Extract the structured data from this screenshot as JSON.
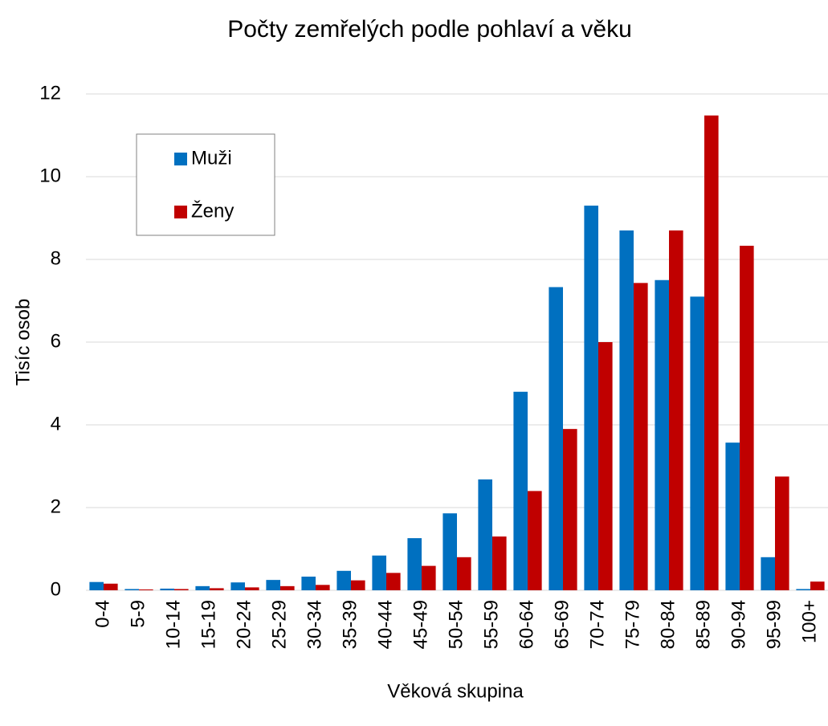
{
  "chart_data": {
    "type": "bar",
    "title": "Počty zemřelých podle pohlaví a věku",
    "x_label": "Věková skupina",
    "y_label": "Tisíc osob",
    "categories": [
      "0-4",
      "5-9",
      "10-14",
      "15-19",
      "20-24",
      "25-29",
      "30-34",
      "35-39",
      "40-44",
      "45-49",
      "50-54",
      "55-59",
      "60-64",
      "65-69",
      "70-74",
      "75-79",
      "80-84",
      "85-89",
      "90-94",
      "95-99",
      "100+"
    ],
    "series": [
      {
        "name": "Muži",
        "color": "#0070c0",
        "values": [
          0.2,
          0.03,
          0.04,
          0.1,
          0.19,
          0.25,
          0.33,
          0.47,
          0.84,
          1.26,
          1.86,
          2.68,
          4.8,
          7.33,
          9.3,
          8.7,
          7.5,
          7.1,
          3.57,
          0.8,
          0.03
        ]
      },
      {
        "name": "Ženy",
        "color": "#c00000",
        "values": [
          0.16,
          0.02,
          0.03,
          0.05,
          0.07,
          0.1,
          0.13,
          0.24,
          0.42,
          0.59,
          0.8,
          1.3,
          2.4,
          3.9,
          6.0,
          7.43,
          8.7,
          11.48,
          8.33,
          2.75,
          0.21
        ]
      }
    ],
    "ylim": [
      0,
      12
    ],
    "yticks": [
      0,
      2,
      4,
      6,
      8,
      10,
      12
    ],
    "grid": true,
    "legend": "upper left"
  }
}
